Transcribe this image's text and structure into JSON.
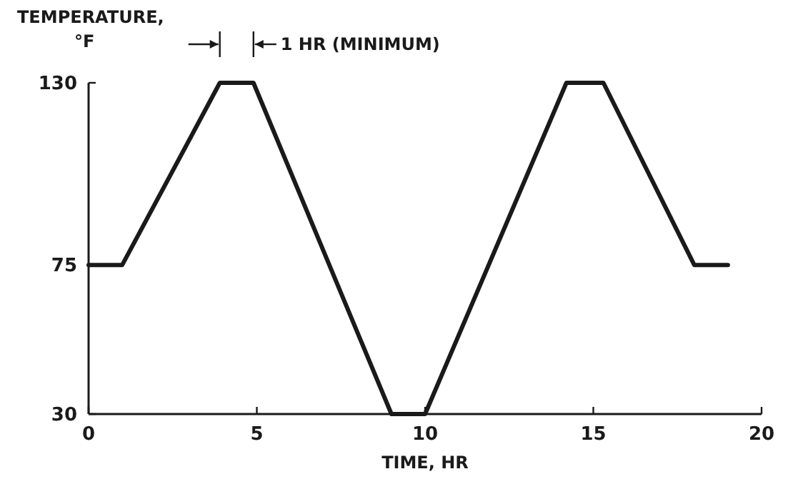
{
  "chart_data": {
    "type": "line",
    "xlabel": "TIME, HR",
    "ylabel": "TEMPERATURE, °F",
    "x": [
      0,
      1,
      3.9,
      4.9,
      9,
      10,
      14.2,
      15.3,
      18,
      19
    ],
    "series": [
      {
        "color": "#1a1a1a",
        "values": [
          75,
          75,
          130,
          130,
          30,
          30,
          130,
          130,
          75,
          75
        ]
      }
    ],
    "xlim": [
      0,
      20
    ],
    "xticks": [
      0,
      5,
      10,
      15,
      20
    ],
    "ylim": [
      30,
      130
    ],
    "yticks": [
      30,
      75,
      130
    ],
    "annotations": [
      {
        "text": "1 HR (MINIMUM)",
        "x": 4.9,
        "y": 130
      }
    ],
    "grid": false,
    "marker": "none",
    "line_style": "solid"
  }
}
